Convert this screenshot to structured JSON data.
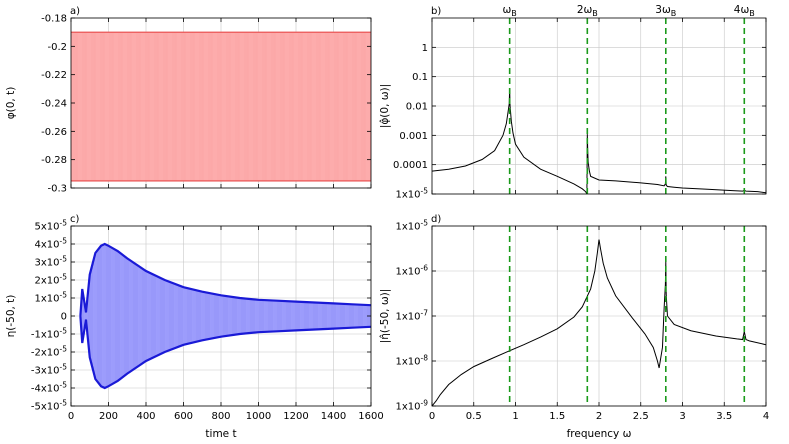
{
  "chart_data": [
    {
      "panel": "a)",
      "type": "area",
      "xlabel": "",
      "ylabel": "φ(0, t)",
      "xlim": [
        0,
        1600
      ],
      "ylim": [
        -0.3,
        -0.18
      ],
      "x_scale": "linear",
      "y_scale": "linear",
      "y_ticks": [
        "-0.18",
        "-0.2",
        "-0.22",
        "-0.24",
        "-0.26",
        "-0.28",
        "-0.3"
      ],
      "y_tick_values": [
        -0.18,
        -0.2,
        -0.22,
        -0.24,
        -0.26,
        -0.28,
        -0.3
      ],
      "x_ticks": [],
      "x_tick_values": [
        0,
        200,
        400,
        600,
        800,
        1000,
        1200,
        1400,
        1600
      ],
      "grid": true,
      "series": [
        {
          "color": "#e84a4a",
          "fill": "#ffb6b6",
          "envelope": {
            "t": [
              0,
              1600
            ],
            "upper": [
              -0.19,
              -0.19
            ],
            "lower": [
              -0.295,
              -0.295
            ]
          }
        }
      ]
    },
    {
      "panel": "b)",
      "type": "line",
      "xlabel": "",
      "ylabel": "|φ̂(0, ω)|",
      "xlim": [
        0,
        4
      ],
      "ylim": [
        1e-05,
        10
      ],
      "x_scale": "linear",
      "y_scale": "log",
      "y_ticks": [
        "1x10-5",
        "0.0001",
        "0.001",
        "0.01",
        "0.1",
        "1"
      ],
      "y_tick_values": [
        1e-05,
        0.0001,
        0.001,
        0.01,
        0.1,
        1
      ],
      "x_ticks": [],
      "x_tick_values": [
        0,
        0.5,
        1,
        1.5,
        2,
        2.5,
        3,
        3.5,
        4
      ],
      "grid": true,
      "top_labels": [
        {
          "label": "ωB",
          "x": 0.93
        },
        {
          "label": "2ωB",
          "x": 1.86
        },
        {
          "label": "3ωB",
          "x": 2.8
        },
        {
          "label": "4ωB",
          "x": 3.74
        }
      ],
      "vlines": [
        0.93,
        1.86,
        2.8,
        3.74
      ],
      "vline_color": "#1a9a1a",
      "series": [
        {
          "color": "#000000",
          "x": [
            0,
            0.2,
            0.4,
            0.6,
            0.75,
            0.85,
            0.89,
            0.91,
            0.925,
            0.93,
            0.935,
            0.95,
            0.97,
            1.0,
            1.1,
            1.3,
            1.5,
            1.7,
            1.8,
            1.84,
            1.855,
            1.86,
            1.865,
            1.87,
            1.885,
            1.9,
            2.0,
            2.2,
            2.5,
            2.7,
            2.78,
            2.795,
            2.8,
            2.805,
            2.82,
            2.9,
            3.0,
            3.3,
            3.6,
            3.72,
            3.74,
            3.76,
            3.9,
            4.0
          ],
          "y": [
            6e-05,
            7e-05,
            9e-05,
            0.00015,
            0.0003,
            0.001,
            0.0025,
            0.006,
            0.012,
            0.04,
            0.01,
            0.003,
            0.0012,
            0.0005,
            0.00018,
            7e-05,
            4e-05,
            2.2e-05,
            1.5e-05,
            1.2e-05,
            1e-05,
            0.0011,
            0.0003,
            0.00012,
            6e-05,
            4e-05,
            3e-05,
            2.8e-05,
            2.4e-05,
            2.1e-05,
            1.9e-05,
            2.2e-05,
            4e-05,
            2e-05,
            1.8e-05,
            1.7e-05,
            1.6e-05,
            1.45e-05,
            1.3e-05,
            1.25e-05,
            1.35e-05,
            1.25e-05,
            1.2e-05,
            1.1e-05
          ]
        }
      ]
    },
    {
      "panel": "c)",
      "type": "area",
      "xlabel": "time t",
      "ylabel": "η(-50, t)",
      "xlim": [
        0,
        1600
      ],
      "ylim": [
        -5e-05,
        5e-05
      ],
      "x_scale": "linear",
      "y_scale": "linear",
      "y_ticks": [
        "5x10-5",
        "4x10-5",
        "3x10-5",
        "2x10-5",
        "1x10-5",
        "0",
        "-1x10-5",
        "-2x10-5",
        "-3x10-5",
        "-4x10-5",
        "-5x10-5"
      ],
      "y_tick_values": [
        5e-05,
        4e-05,
        3e-05,
        2e-05,
        1e-05,
        0,
        -1e-05,
        -2e-05,
        -3e-05,
        -4e-05,
        -5e-05
      ],
      "x_ticks": [
        "0",
        "200",
        "400",
        "600",
        "800",
        "1000",
        "1200",
        "1400",
        "1600"
      ],
      "x_tick_values": [
        0,
        200,
        400,
        600,
        800,
        1000,
        1200,
        1400,
        1600
      ],
      "grid": true,
      "series": [
        {
          "color": "#1a1ad6",
          "fill": "#aaaaff",
          "envelope": {
            "t": [
              50,
              60,
              80,
              100,
              130,
              160,
              180,
              200,
              250,
              300,
              400,
              500,
              600,
              700,
              800,
              900,
              1000,
              1100,
              1200,
              1300,
              1400,
              1500,
              1600
            ],
            "upper": [
              0,
              1.5e-05,
              2e-06,
              2.3e-05,
              3.5e-05,
              3.9e-05,
              4e-05,
              3.9e-05,
              3.6e-05,
              3.2e-05,
              2.5e-05,
              2e-05,
              1.6e-05,
              1.35e-05,
              1.15e-05,
              1e-05,
              9e-06,
              8.5e-06,
              8e-06,
              7.5e-06,
              7e-06,
              6.5e-06,
              6e-06
            ],
            "lower": [
              0,
              -1.5e-05,
              -2e-06,
              -2.3e-05,
              -3.5e-05,
              -3.9e-05,
              -4e-05,
              -3.9e-05,
              -3.6e-05,
              -3.2e-05,
              -2.5e-05,
              -2e-05,
              -1.6e-05,
              -1.35e-05,
              -1.15e-05,
              -1e-05,
              -9e-06,
              -8.5e-06,
              -8e-06,
              -7.5e-06,
              -7e-06,
              -6.5e-06,
              -6e-06
            ]
          }
        }
      ]
    },
    {
      "panel": "d)",
      "type": "line",
      "xlabel": "frequency ω",
      "ylabel": "|η̂(-50, ω)|",
      "xlim": [
        0,
        4
      ],
      "ylim": [
        1e-09,
        1e-05
      ],
      "x_scale": "linear",
      "y_scale": "log",
      "y_ticks": [
        "1x10-9",
        "1x10-8",
        "1x10-7",
        "1x10-6",
        "1x10-5"
      ],
      "y_tick_values": [
        1e-09,
        1e-08,
        1e-07,
        1e-06,
        1e-05
      ],
      "x_ticks": [
        "0",
        "0.5",
        "1",
        "1.5",
        "2",
        "2.5",
        "3",
        "3.5",
        "4"
      ],
      "x_tick_values": [
        0,
        0.5,
        1,
        1.5,
        2,
        2.5,
        3,
        3.5,
        4
      ],
      "grid": true,
      "vlines": [
        0.93,
        1.86,
        2.8,
        3.74
      ],
      "vline_color": "#1a9a1a",
      "series": [
        {
          "color": "#000000",
          "x": [
            0,
            0.05,
            0.1,
            0.2,
            0.35,
            0.5,
            0.7,
            0.9,
            1.1,
            1.3,
            1.5,
            1.7,
            1.8,
            1.9,
            1.95,
            1.98,
            2.0,
            2.02,
            2.05,
            2.1,
            2.2,
            2.4,
            2.55,
            2.65,
            2.7,
            2.72,
            2.76,
            2.78,
            2.795,
            2.8,
            2.805,
            2.82,
            2.9,
            3.1,
            3.4,
            3.65,
            3.72,
            3.74,
            3.76,
            3.8,
            4.0
          ],
          "y": [
            1e-09,
            1.3e-09,
            1.8e-09,
            3e-09,
            5e-09,
            7.5e-09,
            1.1e-08,
            1.6e-08,
            2.3e-08,
            3.4e-08,
            5.2e-08,
            9.5e-08,
            1.6e-07,
            4e-07,
            1e-06,
            2.5e-06,
            5e-06,
            3e-06,
            1.5e-06,
            7e-07,
            2.8e-07,
            9e-08,
            4e-08,
            2e-08,
            1e-08,
            7e-09,
            2e-08,
            1.5e-07,
            5e-07,
            1.6e-06,
            3e-07,
            1e-07,
            6.5e-08,
            4.7e-08,
            3.6e-08,
            3.1e-08,
            3e-08,
            4.5e-08,
            3e-08,
            2.8e-08,
            2.3e-08
          ]
        }
      ]
    }
  ]
}
